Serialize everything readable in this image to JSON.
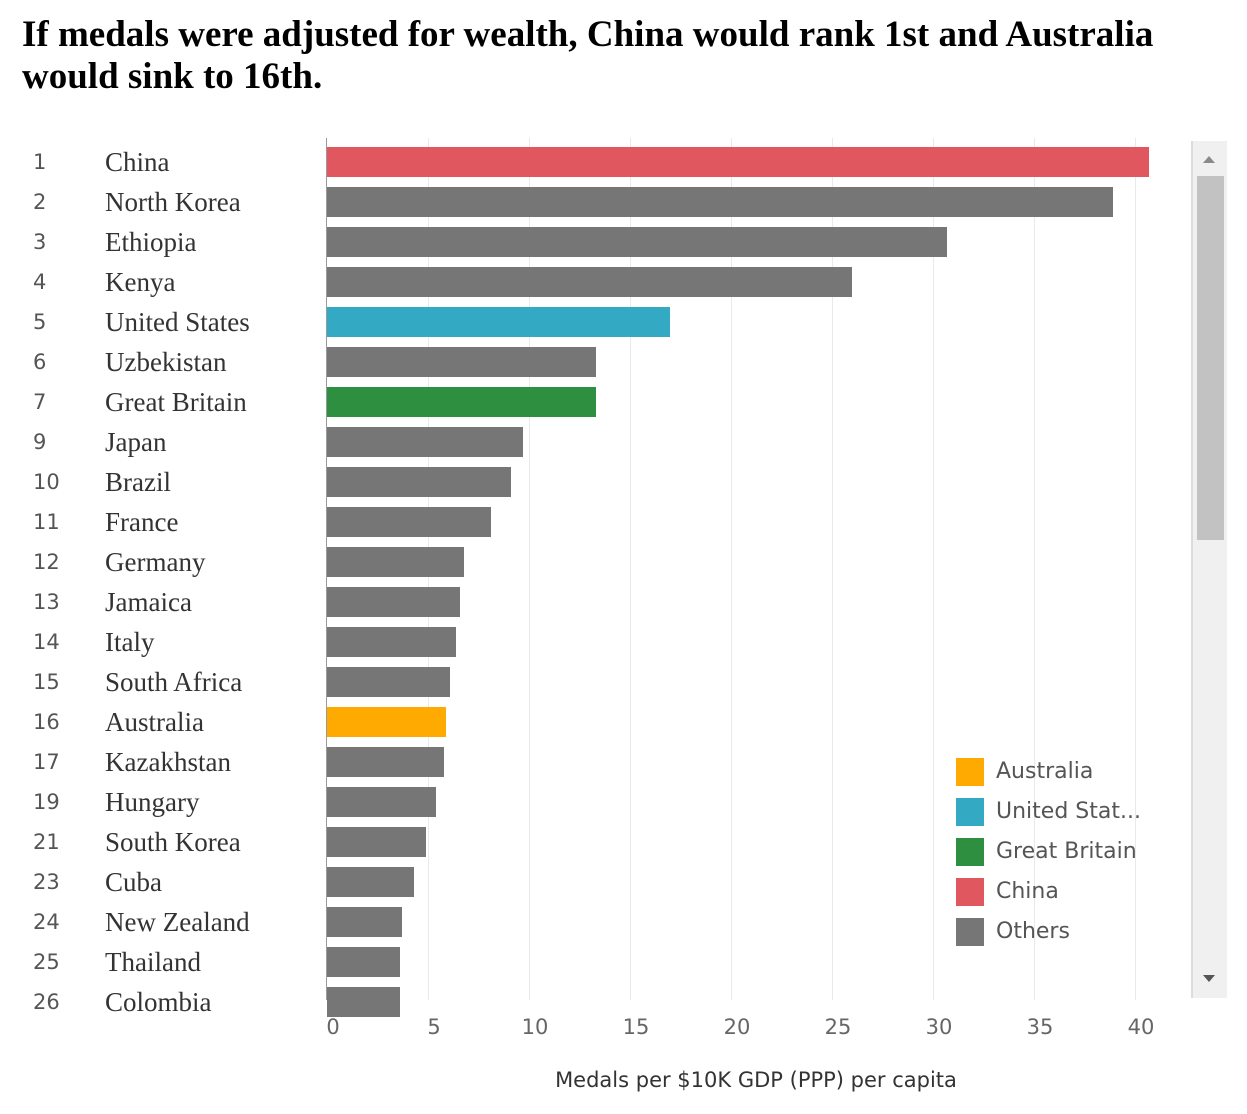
{
  "title": "If medals were adjusted for wealth, China would rank 1st and Australia would sink to 16th.",
  "chart_data": {
    "type": "bar",
    "orientation": "horizontal",
    "ranks": [
      "1",
      "2",
      "3",
      "4",
      "5",
      "6",
      "7",
      "9",
      "10",
      "11",
      "12",
      "13",
      "14",
      "15",
      "16",
      "17",
      "19",
      "21",
      "23",
      "24",
      "25",
      "26"
    ],
    "categories": [
      "China",
      "North Korea",
      "Ethiopia",
      "Kenya",
      "United States",
      "Uzbekistan",
      "Great Britain",
      "Japan",
      "Brazil",
      "France",
      "Germany",
      "Jamaica",
      "Italy",
      "South Africa",
      "Australia",
      "Kazakhstan",
      "Hungary",
      "South Korea",
      "Cuba",
      "New Zealand",
      "Thailand",
      "Colombia"
    ],
    "values": [
      40.7,
      38.9,
      30.7,
      26.0,
      17.0,
      13.3,
      13.3,
      9.7,
      9.1,
      8.1,
      6.8,
      6.6,
      6.4,
      6.1,
      5.9,
      5.8,
      5.4,
      4.9,
      4.3,
      3.7,
      3.6,
      3.6
    ],
    "color_group": [
      "China",
      "Others",
      "Others",
      "Others",
      "United States",
      "Others",
      "Great Britain",
      "Others",
      "Others",
      "Others",
      "Others",
      "Others",
      "Others",
      "Others",
      "Australia",
      "Others",
      "Others",
      "Others",
      "Others",
      "Others",
      "Others",
      "Others"
    ],
    "xlabel": "Medals per $10K GDP (PPP) per capita",
    "xlim": [
      0,
      42
    ],
    "xticks": [
      "0",
      "5",
      "10",
      "15",
      "20",
      "25",
      "30",
      "35",
      "40"
    ],
    "grid": "vertical",
    "legend": {
      "placement": "bottom-right",
      "entries": [
        {
          "label": "Australia",
          "color": "#FFAA00"
        },
        {
          "label": "United Stat...",
          "color": "#33A9C4"
        },
        {
          "label": "Great Britain",
          "color": "#2E8F41"
        },
        {
          "label": "China",
          "color": "#E1575F"
        },
        {
          "label": "Others",
          "color": "#767676"
        }
      ]
    }
  },
  "colors": {
    "Australia": "#FFAA00",
    "United States": "#33A9C4",
    "Great Britain": "#2E8F41",
    "China": "#E1575F",
    "Others": "#767676"
  },
  "scrollbar": {
    "up_icon": "triangle-up",
    "down_icon": "triangle-down"
  }
}
